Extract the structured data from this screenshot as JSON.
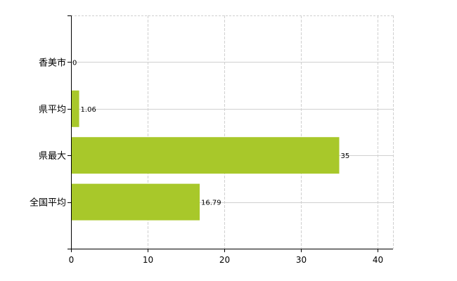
{
  "chart_data": {
    "type": "bar",
    "orientation": "horizontal",
    "categories": [
      "香美市",
      "県平均",
      "県最大",
      "全国平均"
    ],
    "values": [
      0,
      1.06,
      35,
      16.79
    ],
    "data_labels": [
      "0",
      "1.06",
      "35",
      "16.79"
    ],
    "xlim": [
      0,
      42
    ],
    "xticks": [
      "0",
      "10",
      "20",
      "30",
      "40"
    ],
    "grid": true,
    "bar_color": "#a8c82a",
    "title": "",
    "xlabel": "",
    "ylabel": ""
  }
}
